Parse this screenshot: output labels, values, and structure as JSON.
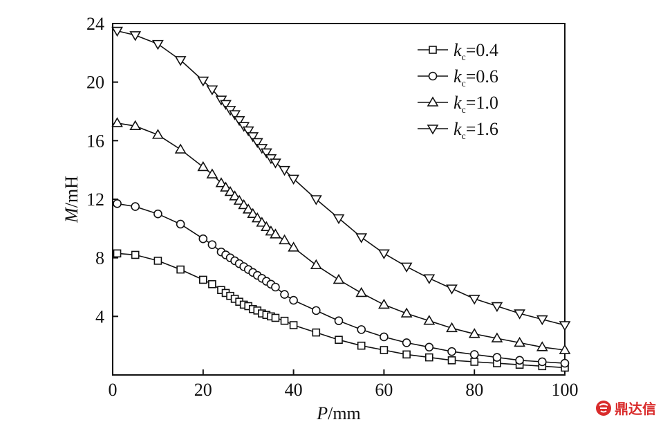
{
  "chart_data": {
    "type": "line",
    "xlabel_var": "P",
    "xlabel_unit": "/mm",
    "ylabel_var": "M",
    "ylabel_unit": "/mH",
    "xlim": [
      0,
      100
    ],
    "ylim": [
      0,
      24
    ],
    "xticks": [
      "0",
      "20",
      "40",
      "60",
      "80",
      "100"
    ],
    "yticks": [
      "4",
      "8",
      "12",
      "16",
      "20",
      "24"
    ],
    "legend_position": "top-right",
    "grid": false,
    "series": [
      {
        "name_var": "k",
        "name_sub": "c",
        "name_value": "=0.4",
        "marker": "square",
        "x": [
          1,
          5,
          10,
          15,
          20,
          22,
          24,
          25,
          26,
          27,
          28,
          29,
          30,
          31,
          32,
          33,
          34,
          35,
          36,
          38,
          40,
          45,
          50,
          55,
          60,
          65,
          70,
          75,
          80,
          85,
          90,
          95,
          100
        ],
        "y": [
          8.3,
          8.2,
          7.8,
          7.2,
          6.5,
          6.2,
          5.8,
          5.6,
          5.4,
          5.2,
          5.0,
          4.8,
          4.7,
          4.5,
          4.4,
          4.2,
          4.1,
          4.0,
          3.9,
          3.7,
          3.4,
          2.9,
          2.4,
          2.0,
          1.7,
          1.4,
          1.2,
          1.0,
          0.9,
          0.8,
          0.7,
          0.6,
          0.5
        ]
      },
      {
        "name_var": "k",
        "name_sub": "c",
        "name_value": "=0.6",
        "marker": "circle",
        "x": [
          1,
          5,
          10,
          15,
          20,
          22,
          24,
          25,
          26,
          27,
          28,
          29,
          30,
          31,
          32,
          33,
          34,
          35,
          36,
          38,
          40,
          45,
          50,
          55,
          60,
          65,
          70,
          75,
          80,
          85,
          90,
          95,
          100
        ],
        "y": [
          11.7,
          11.5,
          11.0,
          10.3,
          9.3,
          8.9,
          8.4,
          8.2,
          8.0,
          7.8,
          7.6,
          7.4,
          7.2,
          7.0,
          6.8,
          6.6,
          6.4,
          6.2,
          6.0,
          5.5,
          5.1,
          4.4,
          3.7,
          3.1,
          2.6,
          2.2,
          1.9,
          1.6,
          1.4,
          1.2,
          1.0,
          0.9,
          0.8
        ]
      },
      {
        "name_var": "k",
        "name_sub": "c",
        "name_value": "=1.0",
        "marker": "triangle-up",
        "x": [
          1,
          5,
          10,
          15,
          20,
          22,
          24,
          25,
          26,
          27,
          28,
          29,
          30,
          31,
          32,
          33,
          34,
          35,
          36,
          38,
          40,
          45,
          50,
          55,
          60,
          65,
          70,
          75,
          80,
          85,
          90,
          95,
          100
        ],
        "y": [
          17.2,
          17.0,
          16.4,
          15.4,
          14.2,
          13.7,
          13.1,
          12.8,
          12.5,
          12.2,
          11.9,
          11.6,
          11.3,
          11.0,
          10.7,
          10.4,
          10.1,
          9.8,
          9.6,
          9.2,
          8.7,
          7.5,
          6.5,
          5.6,
          4.8,
          4.2,
          3.7,
          3.2,
          2.8,
          2.5,
          2.2,
          1.9,
          1.7
        ]
      },
      {
        "name_var": "k",
        "name_sub": "c",
        "name_value": "=1.6",
        "marker": "triangle-down",
        "x": [
          1,
          5,
          10,
          15,
          20,
          22,
          24,
          25,
          26,
          27,
          28,
          29,
          30,
          31,
          32,
          33,
          34,
          35,
          36,
          38,
          40,
          45,
          50,
          55,
          60,
          65,
          70,
          75,
          80,
          85,
          90,
          95,
          100
        ],
        "y": [
          23.5,
          23.2,
          22.6,
          21.5,
          20.1,
          19.5,
          18.8,
          18.5,
          18.1,
          17.8,
          17.4,
          17.0,
          16.7,
          16.3,
          15.9,
          15.5,
          15.2,
          14.8,
          14.5,
          14.0,
          13.4,
          12.0,
          10.7,
          9.4,
          8.3,
          7.4,
          6.6,
          5.9,
          5.2,
          4.7,
          4.2,
          3.8,
          3.4
        ]
      }
    ]
  },
  "watermark": {
    "text": "鼎达信"
  }
}
